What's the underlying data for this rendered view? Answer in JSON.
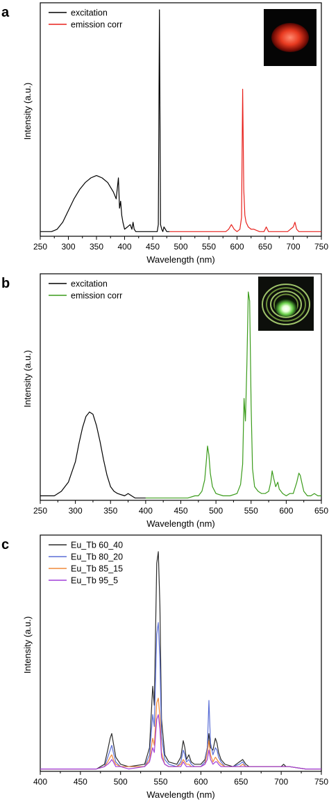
{
  "colors": {
    "excitation": "#000000",
    "emission_red": "#e8211c",
    "emission_green": "#3a9b1a",
    "eu_tb_60_40": "#2b2b2b",
    "eu_tb_80_20": "#5b6fd6",
    "eu_tb_85_15": "#f08a3a",
    "eu_tb_95_5": "#a23fd8"
  },
  "chart_data": [
    {
      "type": "line",
      "panel_label": "a",
      "xlabel": "Wavelength (nm)",
      "ylabel": "Intensity (a.u.)",
      "xlim": [
        250,
        750
      ],
      "ylim": [
        0,
        1.0
      ],
      "xticks": [
        "250",
        "300",
        "350",
        "400",
        "450",
        "500",
        "550",
        "600",
        "650",
        "700",
        "750"
      ],
      "xtick_values": [
        250,
        300,
        350,
        400,
        450,
        500,
        550,
        600,
        650,
        700,
        750
      ],
      "legend": "top-left",
      "inset_icon": "red-emitting-sample-photo",
      "series": [
        {
          "name": "excitation",
          "color_key": "excitation",
          "x": [
            250,
            260,
            270,
            280,
            290,
            300,
            310,
            320,
            330,
            340,
            350,
            360,
            370,
            380,
            385,
            389,
            391,
            393,
            395,
            397,
            400,
            405,
            410,
            413,
            415,
            417,
            420,
            430,
            440,
            445,
            450,
            455,
            458,
            460,
            462,
            464,
            466,
            468,
            470,
            475,
            480
          ],
          "y": [
            0.02,
            0.02,
            0.02,
            0.03,
            0.06,
            0.11,
            0.16,
            0.2,
            0.23,
            0.25,
            0.26,
            0.25,
            0.23,
            0.19,
            0.16,
            0.25,
            0.12,
            0.15,
            0.09,
            0.06,
            0.03,
            0.04,
            0.05,
            0.03,
            0.06,
            0.03,
            0.02,
            0.02,
            0.02,
            0.02,
            0.02,
            0.02,
            0.02,
            0.05,
            0.97,
            0.05,
            0.03,
            0.02,
            0.04,
            0.02,
            0.02
          ]
        },
        {
          "name": "emission corr",
          "color_key": "emission_red",
          "x": [
            480,
            500,
            520,
            540,
            560,
            580,
            585,
            590,
            595,
            600,
            605,
            608,
            610,
            612,
            614,
            616,
            620,
            625,
            630,
            640,
            648,
            652,
            656,
            660,
            680,
            690,
            695,
            700,
            703,
            706,
            710,
            730,
            750
          ],
          "y": [
            0.02,
            0.02,
            0.02,
            0.02,
            0.02,
            0.02,
            0.03,
            0.05,
            0.03,
            0.02,
            0.03,
            0.08,
            0.63,
            0.2,
            0.09,
            0.06,
            0.04,
            0.03,
            0.03,
            0.02,
            0.02,
            0.04,
            0.02,
            0.02,
            0.02,
            0.02,
            0.03,
            0.04,
            0.06,
            0.03,
            0.02,
            0.02,
            0.02
          ]
        }
      ]
    },
    {
      "type": "line",
      "panel_label": "b",
      "xlabel": "Wavelength (nm)",
      "ylabel": "Intensity (a.u.)",
      "xlim": [
        250,
        650
      ],
      "ylim": [
        0,
        1.0
      ],
      "xticks": [
        "250",
        "300",
        "350",
        "400",
        "450",
        "500",
        "550",
        "600",
        "650"
      ],
      "xtick_values": [
        250,
        300,
        350,
        400,
        450,
        500,
        550,
        600,
        650
      ],
      "legend": "top-left",
      "inset_icon": "green-emitting-sample-photo",
      "series": [
        {
          "name": "excitation",
          "color_key": "excitation",
          "x": [
            250,
            260,
            270,
            280,
            290,
            300,
            305,
            310,
            315,
            320,
            325,
            330,
            335,
            340,
            345,
            350,
            355,
            360,
            370,
            375,
            380,
            385,
            390,
            400
          ],
          "y": [
            0.02,
            0.02,
            0.02,
            0.04,
            0.08,
            0.17,
            0.25,
            0.32,
            0.37,
            0.39,
            0.38,
            0.33,
            0.26,
            0.18,
            0.11,
            0.06,
            0.04,
            0.03,
            0.02,
            0.03,
            0.02,
            0.01,
            0.01,
            0.01
          ]
        },
        {
          "name": "emission corr",
          "color_key": "emission_green",
          "x": [
            400,
            420,
            440,
            460,
            470,
            475,
            480,
            484,
            486,
            488,
            490,
            492,
            495,
            500,
            510,
            520,
            530,
            535,
            538,
            540,
            542,
            544,
            546,
            548,
            550,
            552,
            555,
            560,
            565,
            570,
            575,
            578,
            580,
            582,
            585,
            588,
            590,
            595,
            600,
            605,
            610,
            615,
            618,
            620,
            622,
            625,
            630,
            635,
            640,
            645,
            650
          ],
          "y": [
            0.01,
            0.01,
            0.01,
            0.01,
            0.02,
            0.02,
            0.04,
            0.09,
            0.16,
            0.24,
            0.2,
            0.12,
            0.06,
            0.03,
            0.02,
            0.02,
            0.03,
            0.07,
            0.16,
            0.45,
            0.35,
            0.6,
            0.92,
            0.88,
            0.42,
            0.14,
            0.06,
            0.04,
            0.03,
            0.03,
            0.04,
            0.08,
            0.13,
            0.1,
            0.06,
            0.08,
            0.05,
            0.03,
            0.02,
            0.03,
            0.03,
            0.08,
            0.12,
            0.11,
            0.08,
            0.04,
            0.02,
            0.02,
            0.03,
            0.02,
            0.02
          ]
        }
      ]
    },
    {
      "type": "line",
      "panel_label": "c",
      "xlabel": "Wavelength (nm)",
      "ylabel": "Intensity (a.u.)",
      "xlim": [
        400,
        750
      ],
      "ylim": [
        0,
        1.0
      ],
      "xticks": [
        "400",
        "450",
        "500",
        "550",
        "600",
        "650",
        "700",
        "750"
      ],
      "xtick_values": [
        400,
        450,
        500,
        550,
        600,
        650,
        700,
        750
      ],
      "legend": "top-left",
      "x": [
        400,
        470,
        480,
        484,
        487,
        489,
        491,
        494,
        500,
        510,
        530,
        536,
        540,
        542,
        545,
        547,
        549,
        551,
        555,
        560,
        570,
        575,
        578,
        580,
        582,
        585,
        588,
        592,
        600,
        605,
        608,
        610,
        612,
        615,
        618,
        620,
        622,
        625,
        630,
        640,
        648,
        652,
        656,
        660,
        670,
        680,
        690,
        700,
        703,
        706,
        710,
        730,
        750
      ],
      "series": [
        {
          "name": "Eu_Tb 60_40",
          "color_key": "eu_tb_60_40",
          "y": [
            0.01,
            0.01,
            0.03,
            0.09,
            0.14,
            0.16,
            0.12,
            0.06,
            0.03,
            0.02,
            0.03,
            0.1,
            0.36,
            0.28,
            0.88,
            0.93,
            0.7,
            0.22,
            0.07,
            0.04,
            0.03,
            0.06,
            0.13,
            0.1,
            0.05,
            0.07,
            0.04,
            0.03,
            0.03,
            0.05,
            0.1,
            0.16,
            0.1,
            0.09,
            0.14,
            0.12,
            0.08,
            0.05,
            0.03,
            0.02,
            0.04,
            0.05,
            0.03,
            0.02,
            0.02,
            0.02,
            0.02,
            0.02,
            0.03,
            0.02,
            0.02,
            0.01,
            0.01
          ]
        },
        {
          "name": "Eu_Tb 80_20",
          "color_key": "eu_tb_80_20",
          "y": [
            0.01,
            0.01,
            0.02,
            0.06,
            0.09,
            0.11,
            0.08,
            0.04,
            0.02,
            0.02,
            0.02,
            0.07,
            0.24,
            0.19,
            0.58,
            0.63,
            0.47,
            0.15,
            0.05,
            0.03,
            0.02,
            0.04,
            0.09,
            0.07,
            0.04,
            0.05,
            0.03,
            0.02,
            0.02,
            0.04,
            0.1,
            0.3,
            0.12,
            0.07,
            0.1,
            0.09,
            0.06,
            0.04,
            0.02,
            0.02,
            0.03,
            0.04,
            0.02,
            0.02,
            0.02,
            0.02,
            0.02,
            0.02,
            0.02,
            0.02,
            0.02,
            0.01,
            0.01
          ]
        },
        {
          "name": "Eu_Tb 85_15",
          "color_key": "eu_tb_85_15",
          "y": [
            0.01,
            0.01,
            0.02,
            0.04,
            0.06,
            0.07,
            0.05,
            0.03,
            0.02,
            0.02,
            0.02,
            0.05,
            0.14,
            0.11,
            0.29,
            0.31,
            0.23,
            0.08,
            0.03,
            0.02,
            0.02,
            0.03,
            0.05,
            0.04,
            0.03,
            0.03,
            0.02,
            0.02,
            0.02,
            0.03,
            0.08,
            0.13,
            0.07,
            0.04,
            0.06,
            0.05,
            0.04,
            0.03,
            0.02,
            0.02,
            0.02,
            0.03,
            0.02,
            0.02,
            0.02,
            0.02,
            0.02,
            0.02,
            0.02,
            0.02,
            0.02,
            0.01,
            0.01
          ]
        },
        {
          "name": "Eu_Tb 95_5",
          "color_key": "eu_tb_95_5",
          "y": [
            0.01,
            0.01,
            0.02,
            0.03,
            0.04,
            0.05,
            0.04,
            0.02,
            0.02,
            0.01,
            0.02,
            0.04,
            0.1,
            0.08,
            0.22,
            0.24,
            0.18,
            0.06,
            0.03,
            0.02,
            0.02,
            0.02,
            0.04,
            0.03,
            0.02,
            0.02,
            0.02,
            0.02,
            0.02,
            0.03,
            0.05,
            0.09,
            0.05,
            0.03,
            0.04,
            0.04,
            0.03,
            0.02,
            0.02,
            0.02,
            0.02,
            0.02,
            0.02,
            0.02,
            0.02,
            0.02,
            0.02,
            0.02,
            0.02,
            0.02,
            0.02,
            0.01,
            0.01
          ]
        }
      ]
    }
  ]
}
